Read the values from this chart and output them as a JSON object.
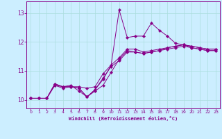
{
  "title": "",
  "xlabel": "Windchill (Refroidissement éolien,°C)",
  "bg_color": "#cceeff",
  "line_color": "#880088",
  "xlim": [
    -0.5,
    23.5
  ],
  "ylim": [
    9.7,
    13.4
  ],
  "yticks": [
    10,
    11,
    12,
    13
  ],
  "xticks": [
    0,
    1,
    2,
    3,
    4,
    5,
    6,
    7,
    8,
    9,
    10,
    11,
    12,
    13,
    14,
    15,
    16,
    17,
    18,
    19,
    20,
    21,
    22,
    23
  ],
  "grid_color": "#aadddd",
  "tick_color": "#880088",
  "series": [
    [
      10.05,
      10.05,
      10.05,
      10.5,
      10.45,
      10.45,
      10.4,
      10.1,
      10.35,
      10.75,
      11.15,
      11.35,
      11.65,
      11.65,
      11.6,
      11.65,
      11.7,
      11.75,
      11.8,
      11.85,
      11.8,
      11.75,
      11.7,
      11.7
    ],
    [
      10.05,
      10.05,
      10.05,
      10.55,
      10.45,
      10.5,
      10.3,
      10.1,
      10.3,
      10.5,
      10.95,
      11.4,
      11.7,
      11.65,
      11.6,
      11.65,
      11.7,
      11.8,
      11.85,
      11.9,
      11.8,
      11.75,
      11.7,
      11.7
    ],
    [
      10.05,
      10.05,
      10.05,
      10.55,
      10.45,
      10.45,
      10.4,
      10.1,
      10.35,
      10.7,
      11.2,
      11.45,
      11.75,
      11.75,
      11.65,
      11.7,
      11.75,
      11.8,
      11.85,
      11.9,
      11.85,
      11.8,
      11.75,
      11.75
    ],
    [
      10.05,
      10.05,
      10.05,
      10.5,
      10.4,
      10.45,
      10.45,
      10.4,
      10.45,
      10.9,
      11.2,
      13.1,
      12.15,
      12.2,
      12.2,
      12.65,
      12.4,
      12.2,
      11.95,
      11.9,
      11.85,
      11.8,
      11.75,
      11.75
    ]
  ]
}
